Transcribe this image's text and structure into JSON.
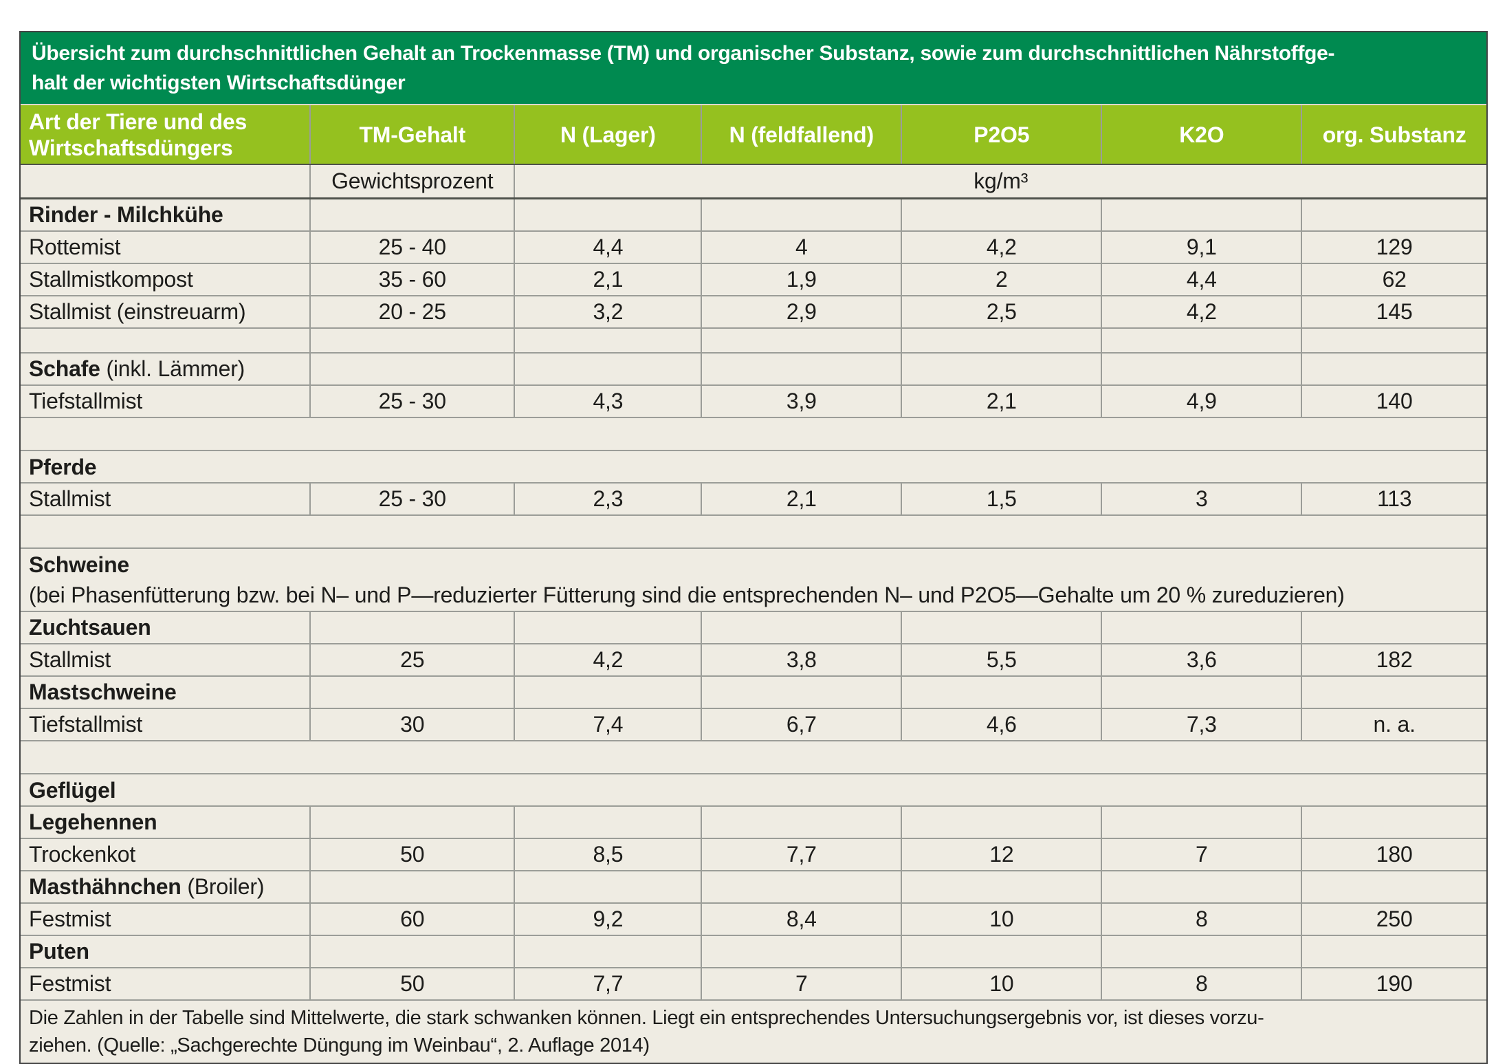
{
  "title": {
    "line1": "Übersicht zum durchschnittlichen Gehalt an Trockenmasse (TM) und organischer Substanz, sowie zum durchschnittlichen Nährstoffge-",
    "line2": "halt der wichtigsten Wirtschaftsdünger"
  },
  "table": {
    "columns": [
      "Art der Tiere und des Wirtschaftsdüngers",
      "TM-Gehalt",
      "N (Lager)",
      "N (feldfallend)",
      "P2O5",
      "K2O",
      "org. Substanz"
    ],
    "units": {
      "tm_unit": "Gewichtsprozent",
      "nutrient_unit": "kg/m³"
    },
    "rows": [
      {
        "type": "section",
        "bold": "Rinder - Milchkühe",
        "regular": ""
      },
      {
        "type": "data",
        "label": "Rottemist",
        "values": [
          "25 - 40",
          "4,4",
          "4",
          "4,2",
          "9,1",
          "129"
        ]
      },
      {
        "type": "data",
        "label": "Stallmistkompost",
        "values": [
          "35 - 60",
          "2,1",
          "1,9",
          "2",
          "4,4",
          "62"
        ]
      },
      {
        "type": "data",
        "label": "Stallmist (einstreuarm)",
        "values": [
          "20 - 25",
          "3,2",
          "2,9",
          "2,5",
          "4,2",
          "145"
        ]
      },
      {
        "type": "gap"
      },
      {
        "type": "section",
        "bold": "Schafe",
        "regular": " (inkl. Lämmer)"
      },
      {
        "type": "data",
        "label": "Tiefstallmist",
        "values": [
          "25 - 30",
          "4,3",
          "3,9",
          "2,1",
          "4,9",
          "140"
        ]
      },
      {
        "type": "gapfull"
      },
      {
        "type": "full",
        "bold": "Pferde",
        "regular": ""
      },
      {
        "type": "data",
        "label": "Stallmist",
        "values": [
          "25 - 30",
          "2,3",
          "2,1",
          "1,5",
          "3",
          "113"
        ]
      },
      {
        "type": "gapfull"
      },
      {
        "type": "full",
        "bold": "Schweine",
        "regular": "",
        "note": "(bei Phasenfütterung bzw. bei N– und P—reduzierter Fütterung sind die entsprechenden N– und P2O5—Gehalte um 20 % zureduzieren)"
      },
      {
        "type": "section",
        "bold": "Zuchtsauen",
        "regular": ""
      },
      {
        "type": "data",
        "label": "Stallmist",
        "values": [
          "25",
          "4,2",
          "3,8",
          "5,5",
          "3,6",
          "182"
        ]
      },
      {
        "type": "section",
        "bold": "Mastschweine",
        "regular": ""
      },
      {
        "type": "data",
        "label": "Tiefstallmist",
        "values": [
          "30",
          "7,4",
          "6,7",
          "4,6",
          "7,3",
          "n. a."
        ]
      },
      {
        "type": "gapfull"
      },
      {
        "type": "full",
        "bold": "Geflügel",
        "regular": ""
      },
      {
        "type": "section",
        "bold": "Legehennen",
        "regular": ""
      },
      {
        "type": "data",
        "label": "Trockenkot",
        "values": [
          "50",
          "8,5",
          "7,7",
          "12",
          "7",
          "180"
        ]
      },
      {
        "type": "section",
        "bold": "Masthähnchen",
        "regular": " (Broiler)"
      },
      {
        "type": "data",
        "label": "Festmist",
        "values": [
          "60",
          "9,2",
          "8,4",
          "10",
          "8",
          "250"
        ]
      },
      {
        "type": "section",
        "bold": "Puten",
        "regular": ""
      },
      {
        "type": "data",
        "label": "Festmist",
        "values": [
          "50",
          "7,7",
          "7",
          "10",
          "8",
          "190"
        ]
      }
    ]
  },
  "footer": {
    "line1": "Die Zahlen in der Tabelle sind Mittelwerte, die stark schwanken können. Liegt ein entsprechendes Untersuchungsergebnis vor, ist dieses vorzu-",
    "line2": "ziehen. (Quelle: „Sachgerechte Düngung im Weinbau“, 2. Auflage 2014)"
  },
  "colors": {
    "title_bg": "#008a50",
    "header_bg": "#95c11f",
    "cell_bg": "#efece3",
    "grid_line": "#9b9d98",
    "heavy_line": "#4f524c",
    "outer_border": "#454545",
    "text": "#1d1d1b",
    "header_text": "#ffffff"
  }
}
